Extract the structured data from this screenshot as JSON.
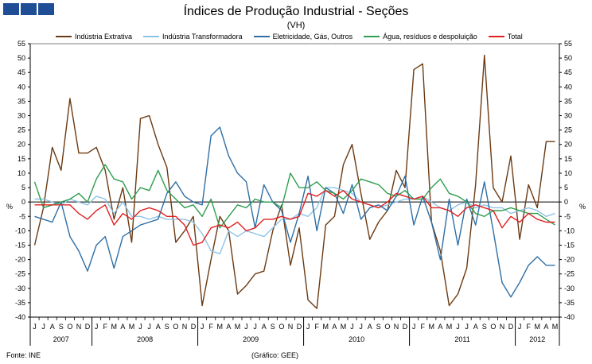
{
  "header": {
    "title": "Índices de Produção Industrial - Seções",
    "subtitle": "(VH)",
    "logo_color": "#1f4e97"
  },
  "footer": {
    "source": "Fonte: INE",
    "credit": "(Gráfico: GEE)"
  },
  "chart_data": {
    "type": "line",
    "title": "Índices de Produção Industrial - Seções",
    "subtitle": "(VH)",
    "ylabel_left": "%",
    "ylabel_right": "%",
    "ylim": [
      -40,
      55
    ],
    "yticks": [
      -40,
      -35,
      -30,
      -25,
      -20,
      -15,
      -10,
      -5,
      0,
      5,
      10,
      15,
      20,
      25,
      30,
      35,
      40,
      45,
      50,
      55
    ],
    "grid": false,
    "legend_position": "top",
    "month_labels": [
      "J",
      "J",
      "A",
      "S",
      "O",
      "N",
      "D",
      "J",
      "F",
      "M",
      "A",
      "M",
      "J",
      "J",
      "A",
      "S",
      "O",
      "N",
      "D",
      "J",
      "F",
      "M",
      "A",
      "M",
      "J",
      "J",
      "A",
      "S",
      "O",
      "N",
      "D",
      "J",
      "F",
      "M",
      "A",
      "M",
      "J",
      "J",
      "A",
      "S",
      "O",
      "N",
      "D",
      "J",
      "F",
      "M",
      "A",
      "M",
      "J",
      "J",
      "A",
      "S",
      "O",
      "N",
      "D",
      "J",
      "F",
      "M",
      "A",
      "M"
    ],
    "years": [
      {
        "label": "2007",
        "start": 0,
        "end": 6
      },
      {
        "label": "2008",
        "start": 7,
        "end": 18
      },
      {
        "label": "2009",
        "start": 19,
        "end": 30
      },
      {
        "label": "2010",
        "start": 31,
        "end": 42
      },
      {
        "label": "2011",
        "start": 43,
        "end": 54
      },
      {
        "label": "2012",
        "start": 55,
        "end": 59
      }
    ],
    "series": [
      {
        "name": "Indústria Extrativa",
        "color": "#6b3a12",
        "values": [
          -15,
          -2,
          19,
          11,
          36,
          17,
          17,
          19,
          11,
          -6,
          5,
          -14,
          29,
          30,
          20,
          12,
          -14,
          -10,
          -5,
          -36,
          -20,
          -5,
          -10,
          -32,
          -29,
          -25,
          -24,
          -10,
          -1,
          -22,
          -9,
          -34,
          -37,
          -8,
          -5,
          13,
          20,
          3,
          -13,
          -7,
          -3,
          11,
          5,
          46,
          48,
          -7,
          -17,
          -36,
          -32,
          -23,
          6,
          51,
          5,
          0,
          16,
          -13,
          6,
          -2,
          21,
          21
        ]
      },
      {
        "name": "Indústria Transformadora",
        "color": "#8fc3e6",
        "values": [
          1,
          1,
          0,
          -1,
          1,
          0,
          -1,
          2,
          1,
          -4,
          0,
          -5,
          -5,
          -6,
          -5,
          -6,
          -6,
          -6,
          -7,
          -11,
          -17,
          -18,
          -10,
          -12,
          -10,
          -11,
          -12,
          -9,
          -6,
          -6,
          -4,
          -5,
          -2,
          5,
          5,
          4,
          3,
          0,
          -1,
          -2,
          -1,
          0,
          1,
          1,
          2,
          0,
          -2,
          -3,
          -1,
          0,
          -2,
          -1,
          -2,
          -2,
          -4,
          -3,
          -2,
          -3,
          -5,
          -4
        ]
      },
      {
        "name": "Eletricidade, Gás, Outros",
        "color": "#2e6fa6",
        "values": [
          -5,
          -6,
          -7,
          0,
          -12,
          -17,
          -24,
          -15,
          -12,
          -23,
          -12,
          -10,
          -8,
          -7,
          -6,
          3,
          7,
          2,
          0,
          -1,
          23,
          26,
          16,
          10,
          7,
          -9,
          6,
          0,
          -3,
          -14,
          -4,
          9,
          -10,
          5,
          3,
          -4,
          6,
          -6,
          -2,
          -1,
          -3,
          2,
          9,
          -8,
          2,
          -7,
          -20,
          1,
          -15,
          1,
          -8,
          7,
          -10,
          -28,
          -33,
          -28,
          -22,
          -19,
          -22,
          -22
        ]
      },
      {
        "name": "Água, resíduos e despoluição",
        "color": "#2e9e4f",
        "values": [
          7,
          -2,
          -1,
          0,
          1,
          3,
          0,
          8,
          13,
          8,
          7,
          1,
          5,
          4,
          11,
          4,
          1,
          -2,
          -1,
          -5,
          1,
          -9,
          -5,
          -1,
          -2,
          1,
          0,
          0,
          -2,
          10,
          5,
          5,
          7,
          4,
          3,
          1,
          4,
          8,
          7,
          6,
          3,
          2,
          4,
          1,
          1,
          5,
          8,
          3,
          2,
          0,
          -4,
          -5,
          -3,
          -3,
          -2,
          -3,
          -4,
          -4,
          -6,
          -8
        ]
      },
      {
        "name": "Total",
        "color": "#e02020",
        "values": [
          -1,
          -1,
          -1,
          -1,
          -1,
          -4,
          -6,
          -3,
          -1,
          -8,
          -4,
          -6,
          -3,
          -2,
          -3,
          -5,
          -5,
          -8,
          -15,
          -14,
          -9,
          -8,
          -9,
          -7,
          -10,
          -9,
          -6,
          -6,
          -5,
          -6,
          -5,
          3,
          2,
          4,
          2,
          4,
          1,
          0,
          -1,
          -2,
          0,
          3,
          2,
          1,
          2,
          -2,
          -2,
          -3,
          -5,
          -2,
          -1,
          -2,
          -3,
          -9,
          -5,
          -7,
          -4,
          -6,
          -7,
          -7
        ]
      }
    ]
  }
}
